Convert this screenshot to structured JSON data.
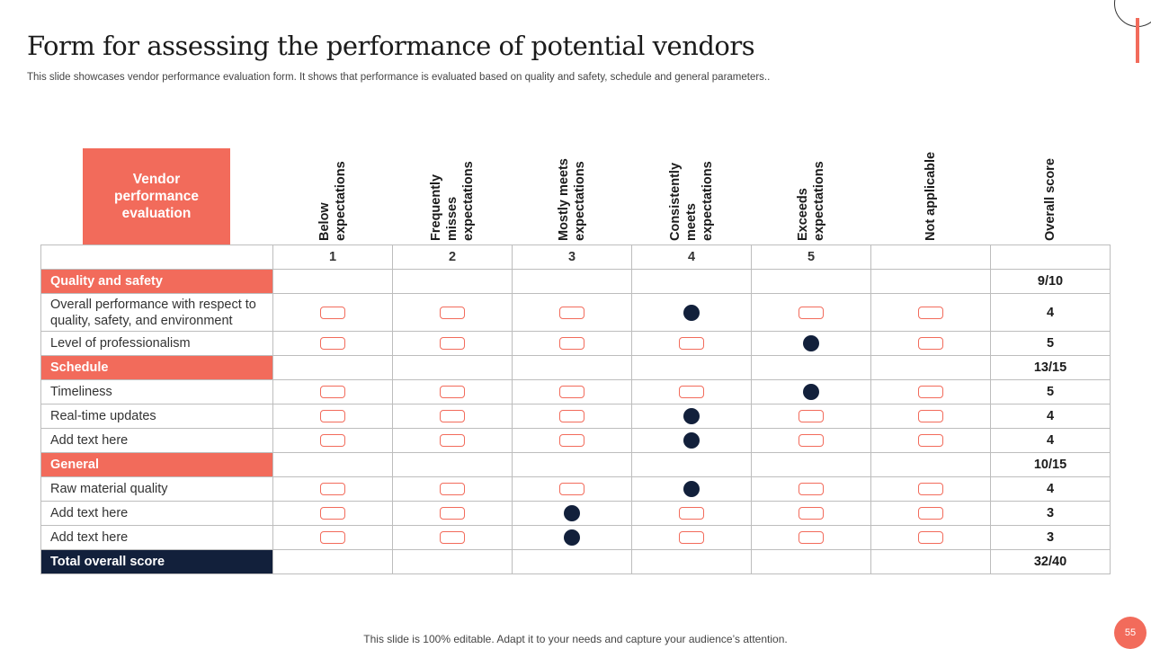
{
  "slide": {
    "title": "Form for assessing the performance of potential vendors",
    "subtitle": "This slide showcases vendor performance evaluation form. It shows that performance is evaluated based on quality and safety, schedule and general parameters..",
    "footer": "This slide is 100% editable. Adapt it to your needs and capture your audience’s attention.",
    "page_number": "55"
  },
  "colors": {
    "accent": "#f26b5b",
    "dark": "#12203b"
  },
  "table": {
    "corner_header": "Vendor\nperformance\nevaluation",
    "columns": [
      "Below\nexpectations",
      "Frequently\nmisses\nexpectations",
      "Mostly meets\nexpectations",
      "Consistently\nmeets\nexpectations",
      "Exceeds\nexpectations",
      "Not applicable",
      "Overall score"
    ],
    "numbers": [
      "1",
      "2",
      "3",
      "4",
      "5",
      "",
      ""
    ],
    "sections": [
      {
        "name": "Quality and safety",
        "score": "9/10",
        "rows": [
          {
            "label": "Overall performance with respect to quality, safety, and environment",
            "rating": 4,
            "score": "4"
          },
          {
            "label": "Level of professionalism",
            "rating": 5,
            "score": "5"
          }
        ]
      },
      {
        "name": "Schedule",
        "score": "13/15",
        "rows": [
          {
            "label": "Timeliness",
            "rating": 5,
            "score": "5"
          },
          {
            "label": "Real-time updates",
            "rating": 4,
            "score": "4"
          },
          {
            "label": "Add text here",
            "rating": 4,
            "score": "4"
          }
        ]
      },
      {
        "name": "General",
        "score": "10/15",
        "rows": [
          {
            "label": "Raw material quality",
            "rating": 4,
            "score": "4"
          },
          {
            "label": "Add text here",
            "rating": 3,
            "score": "3"
          },
          {
            "label": "Add text here",
            "rating": 3,
            "score": "3"
          }
        ]
      }
    ],
    "total_label": "Total overall score",
    "total_score": "32/40"
  }
}
